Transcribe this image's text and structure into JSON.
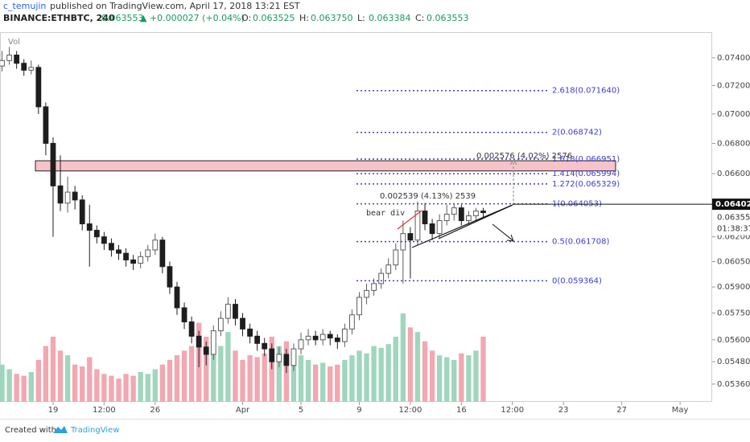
{
  "header": {
    "author": "c_temujin",
    "published": "published on TradingView.com, April 17, 2018 13:21 EST",
    "symbol": "BINANCE:ETHBTC, 240",
    "price": "0.063553",
    "change": "▲ +0.000027 (+0.04%)",
    "ohlc": [
      {
        "key": "O:",
        "value": "0.063525"
      },
      {
        "key": "H:",
        "value": "0.063750"
      },
      {
        "key": "L:",
        "value": "0.063384"
      },
      {
        "key": "C:",
        "value": "0.063553"
      }
    ]
  },
  "footer": {
    "created": "Created with",
    "brand": "TradingView"
  },
  "chart_data": {
    "type": "candlestick",
    "volume_label": "Vol",
    "log": true,
    "grid": false,
    "up_color": "#5c5c5c",
    "down_color": "#1e1e1e",
    "volume_up_color": "#9fd6bd",
    "volume_down_color": "#f2a7b1",
    "fib_color": "#3c3cd0",
    "zone_color": "#f6c3c8",
    "xlim": [
      15.36,
      64.2
    ],
    "ylim": [
      0.05267,
      0.0759
    ],
    "xticks": [
      19,
      {
        "value": 22.5,
        "label": "12:00"
      },
      26,
      {
        "value": 32,
        "label": "Apr"
      },
      {
        "value": 36,
        "label": "5"
      },
      {
        "value": 40,
        "label": "9"
      },
      {
        "value": 43.5,
        "label": "12:00"
      },
      {
        "value": 47,
        "label": "16"
      },
      {
        "value": 50.5,
        "label": "12:00"
      },
      {
        "value": 54,
        "label": "23"
      },
      {
        "value": 58,
        "label": "27"
      },
      {
        "value": 62,
        "label": "May"
      }
    ],
    "yticks": [
      {
        "value": 0.074,
        "label": "0.074000"
      },
      {
        "value": 0.072,
        "label": "0.072000"
      },
      {
        "value": 0.07,
        "label": "0.070000"
      },
      {
        "value": 0.068,
        "label": "0.068000"
      },
      {
        "value": 0.066,
        "label": "0.066000"
      },
      {
        "value": 0.062,
        "label": "0.062000"
      },
      {
        "value": 0.0605,
        "label": "0.060500"
      },
      {
        "value": 0.059,
        "label": "0.059000"
      },
      {
        "value": 0.0575,
        "label": "0.057500"
      },
      {
        "value": 0.056,
        "label": "0.056000"
      },
      {
        "value": 0.0548,
        "label": "0.054800"
      },
      {
        "value": 0.0536,
        "label": "0.053600"
      }
    ],
    "x": [
      15.5,
      16,
      16.5,
      17,
      17.5,
      18,
      18.5,
      19,
      19.5,
      20,
      20.5,
      21,
      21.5,
      22,
      22.5,
      23,
      23.5,
      24,
      24.5,
      25,
      25.5,
      26,
      26.5,
      27,
      27.5,
      28,
      28.5,
      29,
      29.5,
      30,
      30.5,
      31,
      31.5,
      32,
      32.5,
      33,
      33.5,
      34,
      34.5,
      35,
      35.5,
      36,
      36.5,
      37,
      37.5,
      38,
      38.5,
      39,
      39.5,
      40,
      40.5,
      41,
      41.5,
      42,
      42.5,
      43,
      43.5,
      44,
      44.5,
      45,
      45.5,
      46,
      46.5,
      47,
      47.5,
      48,
      48.5
    ],
    "open": [
      0.0734,
      0.0738,
      0.0742,
      0.0736,
      0.0731,
      0.0733,
      0.0705,
      0.068,
      0.0652,
      0.0641,
      0.0648,
      0.0643,
      0.0628,
      0.0624,
      0.062,
      0.0616,
      0.0612,
      0.061,
      0.0606,
      0.0604,
      0.0608,
      0.0612,
      0.0618,
      0.0602,
      0.059,
      0.0578,
      0.057,
      0.0562,
      0.0556,
      0.0552,
      0.0565,
      0.0572,
      0.058,
      0.0572,
      0.0566,
      0.0562,
      0.0558,
      0.0555,
      0.0548,
      0.0552,
      0.0546,
      0.0555,
      0.056,
      0.0562,
      0.056,
      0.0563,
      0.0561,
      0.0559,
      0.0566,
      0.0574,
      0.0584,
      0.0588,
      0.0592,
      0.0598,
      0.0603,
      0.0612,
      0.0622,
      0.0618,
      0.0636,
      0.0628,
      0.0622,
      0.063,
      0.0634,
      0.0638,
      0.063,
      0.0633,
      0.0636
    ],
    "high": [
      0.0745,
      0.0748,
      0.0745,
      0.0739,
      0.0738,
      0.0735,
      0.0708,
      0.0684,
      0.0672,
      0.0658,
      0.0652,
      0.0646,
      0.064,
      0.0627,
      0.0623,
      0.0619,
      0.0615,
      0.0613,
      0.0609,
      0.0611,
      0.0615,
      0.0622,
      0.062,
      0.0605,
      0.0593,
      0.0581,
      0.0573,
      0.0565,
      0.0559,
      0.0568,
      0.0576,
      0.0584,
      0.0583,
      0.0575,
      0.0569,
      0.0565,
      0.0561,
      0.0558,
      0.0556,
      0.0555,
      0.0558,
      0.0564,
      0.0566,
      0.0565,
      0.0566,
      0.0565,
      0.0563,
      0.0569,
      0.0577,
      0.0587,
      0.0592,
      0.0595,
      0.0601,
      0.0607,
      0.0616,
      0.063,
      0.0626,
      0.0642,
      0.0641,
      0.0631,
      0.0634,
      0.064,
      0.0641,
      0.064,
      0.0636,
      0.0638,
      0.0638
    ],
    "low": [
      0.073,
      0.0735,
      0.0732,
      0.0727,
      0.0728,
      0.07,
      0.0672,
      0.062,
      0.0636,
      0.0635,
      0.0637,
      0.0624,
      0.0602,
      0.0616,
      0.0612,
      0.0608,
      0.0606,
      0.0602,
      0.06,
      0.0601,
      0.0605,
      0.0609,
      0.0598,
      0.0586,
      0.0574,
      0.0566,
      0.0558,
      0.0545,
      0.0546,
      0.0549,
      0.0562,
      0.0569,
      0.0568,
      0.0562,
      0.0558,
      0.0554,
      0.0551,
      0.0544,
      0.0545,
      0.0542,
      0.0543,
      0.0552,
      0.0557,
      0.0557,
      0.0557,
      0.0557,
      0.0555,
      0.0556,
      0.0563,
      0.0571,
      0.058,
      0.0585,
      0.0589,
      0.0595,
      0.06,
      0.0592,
      0.0595,
      0.0615,
      0.0624,
      0.0618,
      0.0619,
      0.0627,
      0.063,
      0.0627,
      0.0627,
      0.063,
      0.0632
    ],
    "close": [
      0.0738,
      0.0742,
      0.0736,
      0.0731,
      0.0733,
      0.0705,
      0.068,
      0.0652,
      0.0641,
      0.0648,
      0.0643,
      0.0628,
      0.0624,
      0.062,
      0.0616,
      0.0612,
      0.061,
      0.0606,
      0.0604,
      0.0608,
      0.0612,
      0.0618,
      0.0602,
      0.059,
      0.0578,
      0.057,
      0.0562,
      0.0556,
      0.0552,
      0.0565,
      0.0572,
      0.058,
      0.0572,
      0.0566,
      0.0562,
      0.0558,
      0.0555,
      0.0548,
      0.0552,
      0.0546,
      0.0555,
      0.056,
      0.0562,
      0.056,
      0.0563,
      0.0561,
      0.0559,
      0.0566,
      0.0574,
      0.0584,
      0.0588,
      0.0592,
      0.0598,
      0.0603,
      0.0612,
      0.0622,
      0.0618,
      0.0636,
      0.0628,
      0.0622,
      0.063,
      0.0634,
      0.0638,
      0.063,
      0.0633,
      0.0636,
      0.0635
    ],
    "volume": [
      40,
      35,
      30,
      28,
      32,
      45,
      60,
      70,
      55,
      50,
      40,
      38,
      48,
      35,
      30,
      28,
      25,
      30,
      28,
      32,
      30,
      35,
      40,
      45,
      50,
      55,
      60,
      85,
      70,
      65,
      60,
      75,
      55,
      45,
      50,
      48,
      52,
      70,
      60,
      65,
      55,
      50,
      45,
      40,
      42,
      38,
      40,
      45,
      50,
      55,
      52,
      60,
      58,
      62,
      70,
      95,
      80,
      75,
      65,
      55,
      50,
      48,
      45,
      52,
      50,
      55,
      70
    ],
    "zone": [
      0.06617,
      0.06684
    ],
    "fib_levels": [
      {
        "value": 0.07164,
        "label": "2.618(0.071640)"
      },
      {
        "value": 0.068742,
        "label": "2(0.068742)"
      },
      {
        "value": 0.066951,
        "label": "1.618(0.066951)"
      },
      {
        "value": 0.065994,
        "label": "1.414(0.065994)"
      },
      {
        "value": 0.065329,
        "label": "1.272(0.065329)"
      },
      {
        "value": 0.064053,
        "label": "1(0.064053)"
      },
      {
        "value": 0.061708,
        "label": "0.5(0.061708)"
      },
      {
        "value": 0.059364,
        "label": "0(0.059364)"
      }
    ],
    "last_price": 0.064029,
    "close_price": 0.063553,
    "countdown": "01:38:37",
    "annotations": [
      "0.002576 (4.02%) 2576",
      "0.002539 (4.13%) 2539",
      "bear div"
    ]
  }
}
